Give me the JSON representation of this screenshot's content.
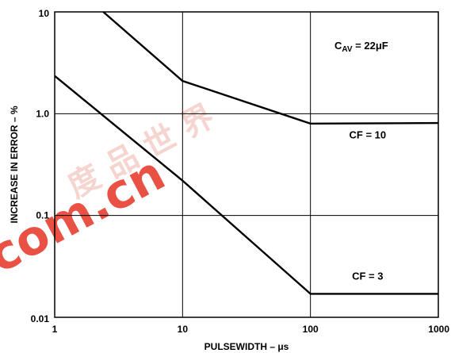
{
  "chart_data": {
    "type": "line",
    "xlabel": "PULSEWIDTH – μs",
    "ylabel": "INCREASE IN ERROR – %",
    "x_scale": "log",
    "y_scale": "log",
    "xlim": [
      1,
      1000
    ],
    "ylim": [
      0.01,
      10
    ],
    "x_ticks": [
      {
        "value": 1,
        "label": "1"
      },
      {
        "value": 10,
        "label": "10"
      },
      {
        "value": 100,
        "label": "100"
      },
      {
        "value": 1000,
        "label": "1000"
      }
    ],
    "y_ticks": [
      {
        "value": 0.01,
        "label": "0.01"
      },
      {
        "value": 0.1,
        "label": "0.1"
      },
      {
        "value": 1,
        "label": "1.0"
      },
      {
        "value": 10,
        "label": "10"
      }
    ],
    "grid": true,
    "series": [
      {
        "name": "CF = 10",
        "points": [
          [
            2.4,
            10
          ],
          [
            10,
            2.1
          ],
          [
            100,
            0.8
          ],
          [
            1000,
            0.81
          ]
        ]
      },
      {
        "name": "CF = 3",
        "points": [
          [
            1,
            2.35
          ],
          [
            10,
            0.22
          ],
          [
            100,
            0.017
          ],
          [
            1000,
            0.017
          ]
        ]
      }
    ],
    "annotations": [
      {
        "main": "C",
        "sub": "AV",
        "rest": " = 22μF",
        "x": 250,
        "y": 4.3
      },
      {
        "main": "CF = 10",
        "x": 280,
        "y": 0.57
      },
      {
        "main": "CF = 3",
        "x": 280,
        "y": 0.0235
      }
    ]
  },
  "watermark": {
    "latin": "com.cn",
    "cjk": "度 品 世 界",
    "color": "#e8483a"
  }
}
